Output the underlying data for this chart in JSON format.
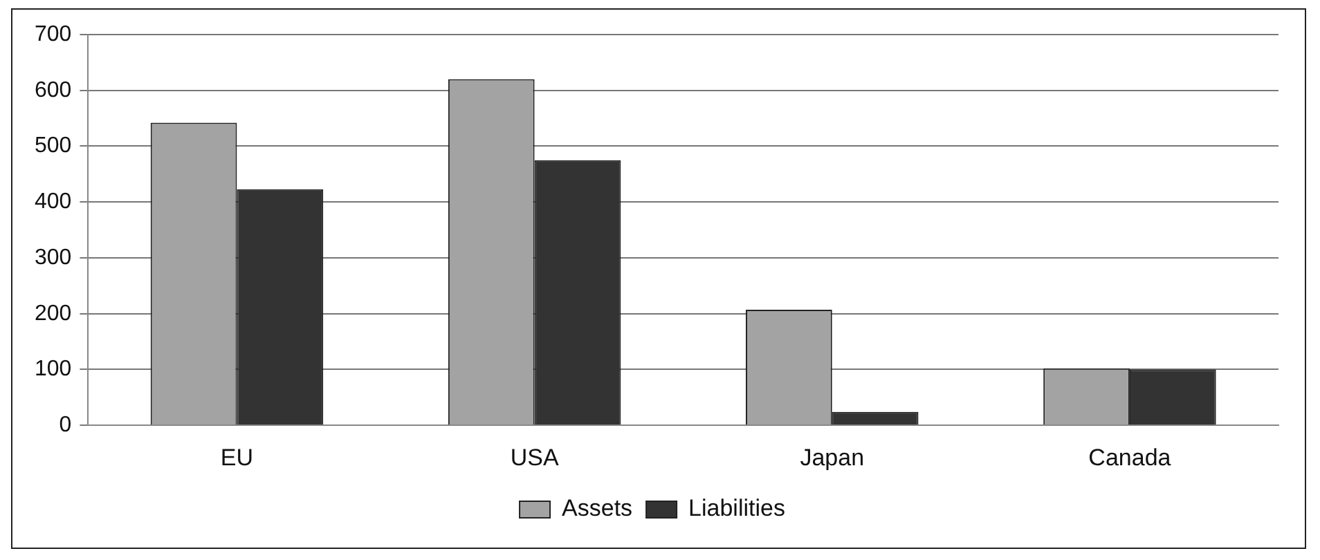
{
  "chart_data": {
    "type": "bar",
    "categories": [
      "EU",
      "USA",
      "Japan",
      "Canada"
    ],
    "series": [
      {
        "name": "Assets",
        "color": "#a3a3a3",
        "values": [
          542,
          620,
          207,
          102
        ]
      },
      {
        "name": "Liabilities",
        "color": "#333333",
        "values": [
          423,
          475,
          24,
          100
        ]
      }
    ],
    "ylim": [
      0,
      700
    ],
    "yticks": [
      0,
      100,
      200,
      300,
      400,
      500,
      600,
      700
    ],
    "grid": "y",
    "legend": "bottom"
  }
}
